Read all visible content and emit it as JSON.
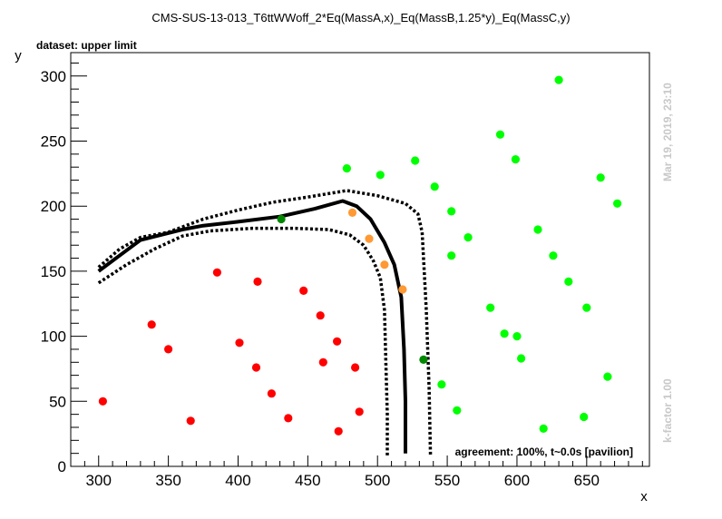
{
  "chart_data": {
    "type": "scatter",
    "title": "CMS-SUS-13-013_T6ttWWoff_2*Eq(MassA,x)_Eq(MassB,1.25*y)_Eq(MassC,y)",
    "subtitle": "dataset: upper limit",
    "xlabel": "x",
    "ylabel": "y",
    "xlim": [
      280,
      695
    ],
    "ylim": [
      0,
      318
    ],
    "xticks": [
      300,
      350,
      400,
      450,
      500,
      550,
      600,
      650
    ],
    "yticks": [
      0,
      50,
      100,
      150,
      200,
      250,
      300
    ],
    "timestamp": "Mar 19, 2019, 23:10",
    "kfactor": "k-factor 1.00",
    "agreement": "agreement: 100%, t~0.0s [pavilion]",
    "colors": {
      "red": "#ff0000",
      "green": "#00ff00",
      "orange": "#ff9933",
      "darkgreen": "#008800",
      "contour": "#000000"
    },
    "points": [
      {
        "x": 303,
        "y": 50,
        "c": "red"
      },
      {
        "x": 338,
        "y": 109,
        "c": "red"
      },
      {
        "x": 350,
        "y": 90,
        "c": "red"
      },
      {
        "x": 366,
        "y": 35,
        "c": "red"
      },
      {
        "x": 385,
        "y": 149,
        "c": "red"
      },
      {
        "x": 401,
        "y": 95,
        "c": "red"
      },
      {
        "x": 413,
        "y": 76,
        "c": "red"
      },
      {
        "x": 414,
        "y": 142,
        "c": "red"
      },
      {
        "x": 424,
        "y": 56,
        "c": "red"
      },
      {
        "x": 436,
        "y": 37,
        "c": "red"
      },
      {
        "x": 447,
        "y": 135,
        "c": "red"
      },
      {
        "x": 459,
        "y": 116,
        "c": "red"
      },
      {
        "x": 461,
        "y": 80,
        "c": "red"
      },
      {
        "x": 471,
        "y": 96,
        "c": "red"
      },
      {
        "x": 472,
        "y": 27,
        "c": "red"
      },
      {
        "x": 484,
        "y": 76,
        "c": "red"
      },
      {
        "x": 487,
        "y": 42,
        "c": "red"
      },
      {
        "x": 482,
        "y": 195,
        "c": "orange"
      },
      {
        "x": 494,
        "y": 175,
        "c": "orange"
      },
      {
        "x": 505,
        "y": 155,
        "c": "orange"
      },
      {
        "x": 518,
        "y": 136,
        "c": "orange"
      },
      {
        "x": 431,
        "y": 190,
        "c": "darkgreen"
      },
      {
        "x": 533,
        "y": 82,
        "c": "darkgreen"
      },
      {
        "x": 478,
        "y": 229,
        "c": "green"
      },
      {
        "x": 502,
        "y": 224,
        "c": "green"
      },
      {
        "x": 527,
        "y": 235,
        "c": "green"
      },
      {
        "x": 541,
        "y": 215,
        "c": "green"
      },
      {
        "x": 553,
        "y": 196,
        "c": "green"
      },
      {
        "x": 553,
        "y": 162,
        "c": "green"
      },
      {
        "x": 565,
        "y": 176,
        "c": "green"
      },
      {
        "x": 546,
        "y": 63,
        "c": "green"
      },
      {
        "x": 557,
        "y": 43,
        "c": "green"
      },
      {
        "x": 581,
        "y": 122,
        "c": "green"
      },
      {
        "x": 588,
        "y": 255,
        "c": "green"
      },
      {
        "x": 591,
        "y": 102,
        "c": "green"
      },
      {
        "x": 599,
        "y": 236,
        "c": "green"
      },
      {
        "x": 600,
        "y": 100,
        "c": "green"
      },
      {
        "x": 603,
        "y": 83,
        "c": "green"
      },
      {
        "x": 615,
        "y": 182,
        "c": "green"
      },
      {
        "x": 619,
        "y": 29,
        "c": "green"
      },
      {
        "x": 626,
        "y": 162,
        "c": "green"
      },
      {
        "x": 630,
        "y": 297,
        "c": "green"
      },
      {
        "x": 637,
        "y": 142,
        "c": "green"
      },
      {
        "x": 648,
        "y": 38,
        "c": "green"
      },
      {
        "x": 650,
        "y": 122,
        "c": "green"
      },
      {
        "x": 660,
        "y": 222,
        "c": "green"
      },
      {
        "x": 665,
        "y": 69,
        "c": "green"
      },
      {
        "x": 672,
        "y": 202,
        "c": "green"
      }
    ],
    "contours": [
      {
        "style": "solid",
        "points": [
          [
            300,
            150
          ],
          [
            315,
            162
          ],
          [
            330,
            174
          ],
          [
            345,
            178
          ],
          [
            360,
            182
          ],
          [
            375,
            185
          ],
          [
            400,
            188
          ],
          [
            430,
            192
          ],
          [
            455,
            198
          ],
          [
            475,
            204
          ],
          [
            485,
            200
          ],
          [
            495,
            190
          ],
          [
            505,
            172
          ],
          [
            512,
            155
          ],
          [
            517,
            130
          ],
          [
            519,
            90
          ],
          [
            520,
            50
          ],
          [
            520,
            10
          ]
        ]
      },
      {
        "style": "dashed",
        "points": [
          [
            300,
            153
          ],
          [
            315,
            167
          ],
          [
            330,
            176
          ],
          [
            350,
            180
          ],
          [
            375,
            190
          ],
          [
            400,
            197
          ],
          [
            425,
            203
          ],
          [
            450,
            207
          ],
          [
            478,
            212
          ],
          [
            500,
            208
          ],
          [
            520,
            202
          ],
          [
            529,
            194
          ],
          [
            532,
            180
          ],
          [
            535,
            120
          ],
          [
            537,
            60
          ],
          [
            538,
            8
          ]
        ]
      },
      {
        "style": "dashed",
        "points": [
          [
            300,
            141
          ],
          [
            320,
            155
          ],
          [
            340,
            167
          ],
          [
            360,
            177
          ],
          [
            380,
            181
          ],
          [
            410,
            183
          ],
          [
            440,
            183
          ],
          [
            465,
            182
          ],
          [
            480,
            178
          ],
          [
            490,
            170
          ],
          [
            497,
            158
          ],
          [
            502,
            145
          ],
          [
            505,
            120
          ],
          [
            506,
            80
          ],
          [
            507,
            40
          ],
          [
            507,
            8
          ]
        ]
      }
    ]
  }
}
